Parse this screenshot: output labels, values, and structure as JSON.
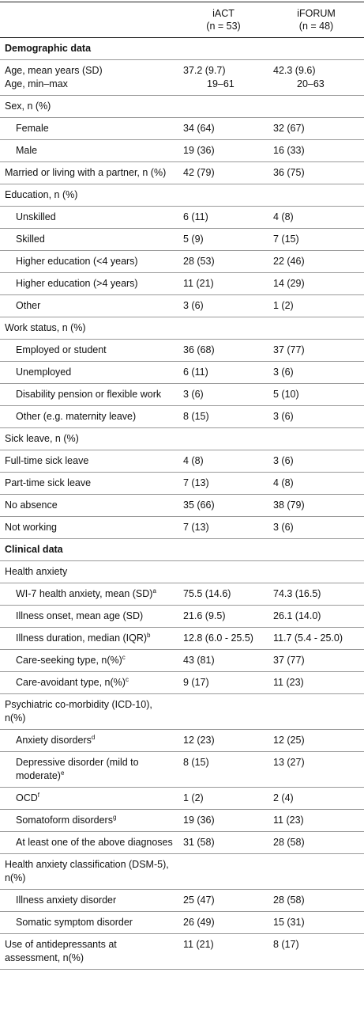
{
  "header": {
    "columns": [
      [
        "iACT",
        "(n = 53)"
      ],
      [
        "iFORUM",
        "(n = 48)"
      ]
    ]
  },
  "rows": [
    {
      "label": "Demographic data",
      "style": "section"
    },
    {
      "label": "Age, mean years (SD)",
      "values": [
        "37.2 (9.7)",
        "42.3 (9.6)"
      ],
      "style": "joined"
    },
    {
      "label": "Age, min–max",
      "values": [
        "19–61",
        "20–63"
      ],
      "style": "range"
    },
    {
      "label": "Sex, n (%)"
    },
    {
      "label": "Female",
      "values": [
        "34 (64)",
        "32 (67)"
      ],
      "style": "indent"
    },
    {
      "label": "Male",
      "values": [
        "19 (36)",
        "16 (33)"
      ],
      "style": "indent"
    },
    {
      "label": "Married or living with a partner, n (%)",
      "values": [
        "42 (79)",
        "36 (75)"
      ]
    },
    {
      "label": "Education, n (%)"
    },
    {
      "label": "Unskilled",
      "values": [
        "6 (11)",
        "4 (8)"
      ],
      "style": "indent"
    },
    {
      "label": "Skilled",
      "values": [
        "5 (9)",
        "7 (15)"
      ],
      "style": "indent"
    },
    {
      "label": "Higher education (<4 years)",
      "values": [
        "28 (53)",
        "22 (46)"
      ],
      "style": "indent"
    },
    {
      "label": "Higher education (>4 years)",
      "values": [
        "11 (21)",
        "14 (29)"
      ],
      "style": "indent"
    },
    {
      "label": "Other",
      "values": [
        "3 (6)",
        "1 (2)"
      ],
      "style": "indent"
    },
    {
      "label": "Work status, n (%)"
    },
    {
      "label": "Employed or student",
      "values": [
        "36 (68)",
        "37 (77)"
      ],
      "style": "indent"
    },
    {
      "label": "Unemployed",
      "values": [
        "6 (11)",
        "3 (6)"
      ],
      "style": "indent"
    },
    {
      "label": "Disability pension or flexible work",
      "values": [
        "3 (6)",
        "5 (10)"
      ],
      "style": "indent"
    },
    {
      "label": "Other (e.g. maternity leave)",
      "values": [
        "8 (15)",
        "3 (6)"
      ],
      "style": "indent"
    },
    {
      "label": "Sick leave, n (%)"
    },
    {
      "label": "Full-time sick leave",
      "values": [
        "4 (8)",
        "3 (6)"
      ]
    },
    {
      "label": "Part-time sick leave",
      "values": [
        "7 (13)",
        "4 (8)"
      ]
    },
    {
      "label": "No absence",
      "values": [
        "35 (66)",
        "38 (79)"
      ]
    },
    {
      "label": "Not working",
      "values": [
        "7 (13)",
        "3 (6)"
      ]
    },
    {
      "label": "Clinical data",
      "style": "section"
    },
    {
      "label": "Health anxiety"
    },
    {
      "label": "WI-7 health anxiety, mean (SD)",
      "sup": "a",
      "values": [
        "75.5 (14.6)",
        "74.3 (16.5)"
      ],
      "style": "indent"
    },
    {
      "label": "Illness onset, mean age (SD)",
      "values": [
        "21.6 (9.5)",
        "26.1 (14.0)"
      ],
      "style": "indent"
    },
    {
      "label": "Illness duration, median (IQR)",
      "sup": "b",
      "values": [
        "12.8 (6.0 - 25.5)",
        "11.7 (5.4 - 25.0)"
      ],
      "style": "indent"
    },
    {
      "label": "Care-seeking type, n(%)",
      "sup": "c",
      "values": [
        "43 (81)",
        "37 (77)"
      ],
      "style": "indent"
    },
    {
      "label": "Care-avoidant type, n(%)",
      "sup": "c",
      "values": [
        "9 (17)",
        "11 (23)"
      ],
      "style": "indent"
    },
    {
      "label": "Psychiatric co-morbidity (ICD-10), n(%)"
    },
    {
      "label": "Anxiety disorders",
      "sup": "d",
      "values": [
        "12 (23)",
        "12 (25)"
      ],
      "style": "indent"
    },
    {
      "label": "Depressive disorder (mild to moderate)",
      "sup": "e",
      "values": [
        "8 (15)",
        "13 (27)"
      ],
      "style": "indent"
    },
    {
      "label": "OCD",
      "sup": "f",
      "values": [
        "1 (2)",
        "2 (4)"
      ],
      "style": "indent"
    },
    {
      "label": "Somatoform disorders",
      "sup": "g",
      "values": [
        "19 (36)",
        "11 (23)"
      ],
      "style": "indent"
    },
    {
      "label": "At least one of the above diagnoses",
      "values": [
        "31 (58)",
        "28 (58)"
      ],
      "style": "indent"
    },
    {
      "label": "Health anxiety classification (DSM-5), n(%)"
    },
    {
      "label": "Illness anxiety disorder",
      "values": [
        "25 (47)",
        "28 (58)"
      ],
      "style": "indent"
    },
    {
      "label": "Somatic symptom disorder",
      "values": [
        "26 (49)",
        "15 (31)"
      ],
      "style": "indent"
    },
    {
      "label": "Use of antidepressants at assessment, n(%)",
      "values": [
        "11 (21)",
        "8 (17)"
      ]
    }
  ]
}
